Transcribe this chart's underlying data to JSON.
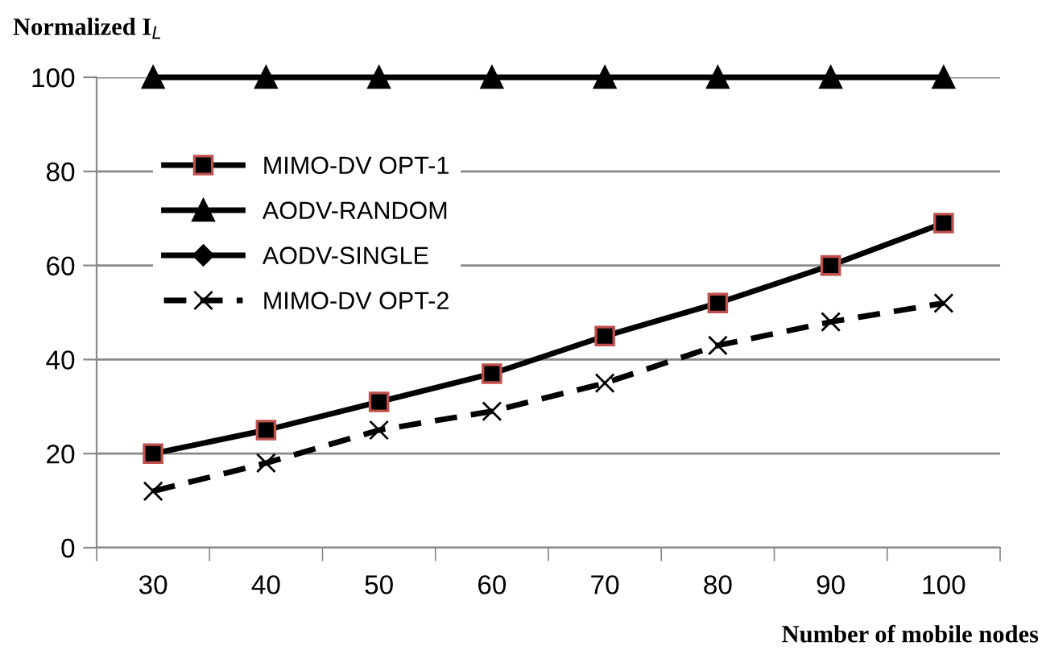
{
  "chart_data": {
    "type": "line",
    "ylabel": "Normalized I$_{L}$",
    "xlabel": "Number of mobile nodes",
    "categories": [
      "30",
      "40",
      "50",
      "60",
      "70",
      "80",
      "90",
      "100"
    ],
    "series": [
      {
        "name": "MIMO-DV OPT-1",
        "color": "#000000",
        "marker": "square",
        "line_style": "solid",
        "values": [
          20,
          25,
          31,
          37,
          45,
          52,
          60,
          69
        ]
      },
      {
        "name": "AODV-RANDOM",
        "color": "#000000",
        "marker": "triangle",
        "line_style": "solid",
        "values": [
          100,
          100,
          100,
          100,
          100,
          100,
          100,
          100
        ]
      },
      {
        "name": "AODV-SINGLE",
        "color": "#000000",
        "marker": "diamond",
        "line_style": "solid",
        "values": [
          null,
          null,
          null,
          null,
          null,
          null,
          null,
          null
        ]
      },
      {
        "name": "MIMO-DV OPT-2",
        "color": "#000000",
        "marker": "cross",
        "line_style": "dashed",
        "values": [
          12,
          18,
          25,
          29,
          35,
          43,
          48,
          52
        ]
      }
    ],
    "ylim": [
      0,
      100
    ],
    "yticks": [
      0,
      20,
      40,
      60,
      80,
      100
    ],
    "grid": "y",
    "legend": "top left"
  }
}
